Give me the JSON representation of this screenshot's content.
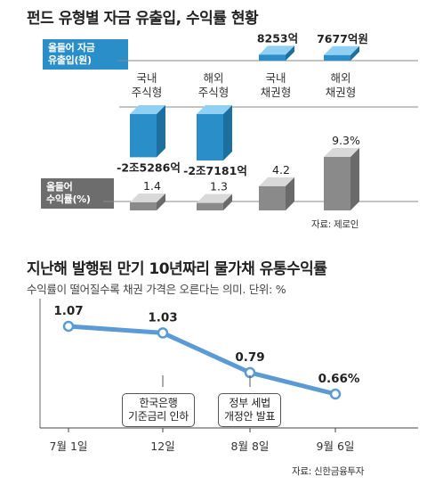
{
  "chart_data": [
    {
      "type": "bar",
      "title": "펀드 유형별 자금 유출입, 수익률 현황",
      "categories": [
        "국내\n주식형",
        "해외\n주식형",
        "국내\n채권형",
        "해외\n채권형"
      ],
      "series": [
        {
          "name": "올들어 자금\n유출입(원)",
          "values": [
            -25286,
            -27181,
            8253,
            7677
          ],
          "value_labels": [
            "-2조5286억",
            "-2조7181억",
            "8253억",
            "7677억원"
          ],
          "color": "#2a8fc8"
        },
        {
          "name": "올들어\n수익률(%)",
          "values": [
            1.4,
            1.3,
            4.2,
            9.3
          ],
          "value_labels": [
            "1.4",
            "1.3",
            "4.2",
            "9.3%"
          ],
          "color": "#8a8a8a"
        }
      ],
      "source": "자료: 제로인"
    },
    {
      "type": "line",
      "title": "지난해 발행된 만기 10년짜리 물가채 유통수익률",
      "subtitle": "수익률이 떨어질수록 채권 가격은 오른다는 의미. 단위: %",
      "x": [
        "7월 1일",
        "12일",
        "8월 8일",
        "9월 6일"
      ],
      "values": [
        1.07,
        1.03,
        0.79,
        0.66
      ],
      "value_labels": [
        "1.07",
        "1.03",
        "0.79",
        "0.66%"
      ],
      "annotations": [
        {
          "text": "한국은행\n기준금리 인하",
          "x": "12일"
        },
        {
          "text": "정부 세법\n개정안 발표",
          "x": "8월 8일"
        }
      ],
      "source": "자료: 신한금융투자",
      "color": "#5b9bd5"
    }
  ]
}
